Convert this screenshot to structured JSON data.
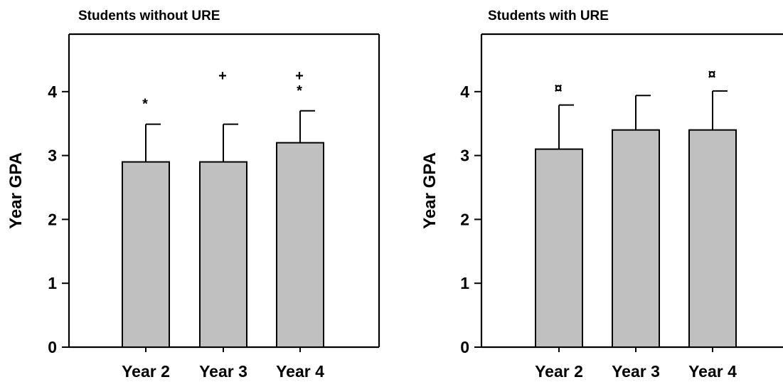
{
  "chart_data": [
    {
      "type": "bar",
      "title": "Students without URE",
      "ylabel": "Year GPA",
      "xlabel": "",
      "categories": [
        "Year 2",
        "Year 3",
        "Year 4"
      ],
      "values": [
        2.9,
        2.9,
        3.2
      ],
      "error_upper": [
        3.49,
        3.49,
        3.7
      ],
      "significance_markers": [
        [
          "*"
        ],
        [
          "+"
        ],
        [
          "*",
          "+"
        ]
      ],
      "ylim": [
        0,
        4.9
      ],
      "yticks": [
        "0",
        "1",
        "2",
        "3",
        "4"
      ],
      "bar_color": "#c0c0c0",
      "grid": false,
      "legend": "none"
    },
    {
      "type": "bar",
      "title": "Students with URE",
      "ylabel": "Year GPA",
      "xlabel": "",
      "categories": [
        "Year 2",
        "Year 3",
        "Year 4"
      ],
      "values": [
        3.1,
        3.4,
        3.4
      ],
      "error_upper": [
        3.79,
        3.94,
        4.01
      ],
      "significance_markers": [
        [
          "¤"
        ],
        [],
        [
          "¤"
        ]
      ],
      "ylim": [
        0,
        4.9
      ],
      "yticks": [
        "0",
        "1",
        "2",
        "3",
        "4"
      ],
      "bar_color": "#c0c0c0",
      "grid": false,
      "legend": "none"
    }
  ]
}
